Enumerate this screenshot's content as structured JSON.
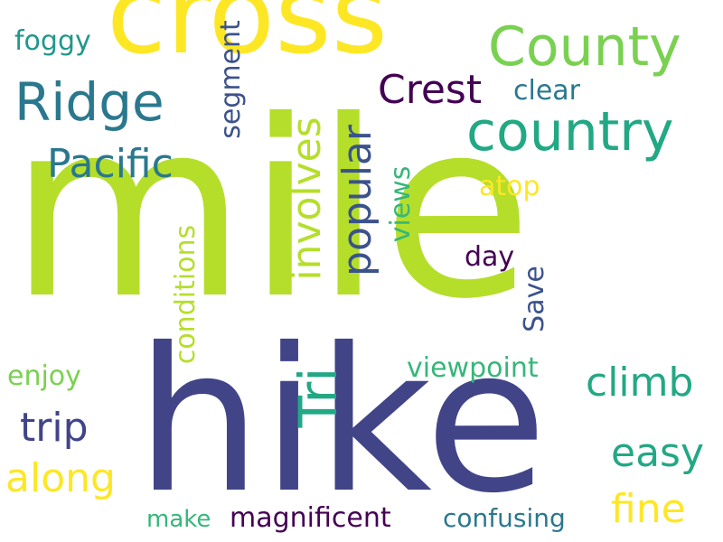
{
  "words": [
    {
      "key": "mile",
      "text": "mile",
      "color": "#b5de2b",
      "orientation": "horizontal"
    },
    {
      "key": "hike",
      "text": "hike",
      "color": "#414487",
      "orientation": "horizontal"
    },
    {
      "key": "cross",
      "text": "cross",
      "color": "#fde725",
      "orientation": "horizontal"
    },
    {
      "key": "county",
      "text": "County",
      "color": "#7ad151",
      "orientation": "horizontal"
    },
    {
      "key": "country",
      "text": "country",
      "color": "#22a884",
      "orientation": "horizontal"
    },
    {
      "key": "ridge",
      "text": "Ridge",
      "color": "#2a788e",
      "orientation": "horizontal"
    },
    {
      "key": "crest",
      "text": "Crest",
      "color": "#440154",
      "orientation": "horizontal"
    },
    {
      "key": "pacific",
      "text": "Pacific",
      "color": "#2a788e",
      "orientation": "horizontal"
    },
    {
      "key": "tri",
      "text": "Tri",
      "color": "#22a884",
      "orientation": "vertical"
    },
    {
      "key": "involves",
      "text": "involves",
      "color": "#b5de2b",
      "orientation": "vertical"
    },
    {
      "key": "popular",
      "text": "popular",
      "color": "#3b528b",
      "orientation": "vertical"
    },
    {
      "key": "climb",
      "text": "climb",
      "color": "#22a884",
      "orientation": "horizontal"
    },
    {
      "key": "easy",
      "text": "easy",
      "color": "#22a884",
      "orientation": "horizontal"
    },
    {
      "key": "fine",
      "text": "fine",
      "color": "#fde725",
      "orientation": "horizontal"
    },
    {
      "key": "along",
      "text": "along",
      "color": "#fde725",
      "orientation": "horizontal"
    },
    {
      "key": "trip",
      "text": "trip",
      "color": "#414487",
      "orientation": "horizontal"
    },
    {
      "key": "foggy",
      "text": "foggy",
      "color": "#1f988b",
      "orientation": "horizontal"
    },
    {
      "key": "clear",
      "text": "clear",
      "color": "#2a788e",
      "orientation": "horizontal"
    },
    {
      "key": "segment",
      "text": "segment",
      "color": "#3b528b",
      "orientation": "vertical"
    },
    {
      "key": "atop",
      "text": "atop",
      "color": "#fde725",
      "orientation": "horizontal"
    },
    {
      "key": "views",
      "text": "views",
      "color": "#35b779",
      "orientation": "vertical"
    },
    {
      "key": "day",
      "text": "day",
      "color": "#440154",
      "orientation": "horizontal"
    },
    {
      "key": "save",
      "text": "Save",
      "color": "#3b528b",
      "orientation": "vertical"
    },
    {
      "key": "conditions",
      "text": "conditions",
      "color": "#b5de2b",
      "orientation": "vertical"
    },
    {
      "key": "viewpoint",
      "text": "viewpoint",
      "color": "#35b779",
      "orientation": "horizontal"
    },
    {
      "key": "enjoy",
      "text": "enjoy",
      "color": "#7ad151",
      "orientation": "horizontal"
    },
    {
      "key": "make",
      "text": "make",
      "color": "#35b779",
      "orientation": "horizontal"
    },
    {
      "key": "magnificent",
      "text": "magnificent",
      "color": "#440154",
      "orientation": "horizontal"
    },
    {
      "key": "confusing",
      "text": "confusing",
      "color": "#2a788e",
      "orientation": "horizontal"
    }
  ]
}
